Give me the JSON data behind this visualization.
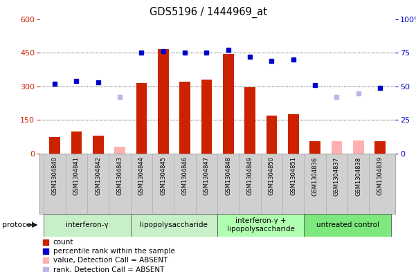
{
  "title": "GDS5196 / 1444969_at",
  "samples": [
    "GSM1304840",
    "GSM1304841",
    "GSM1304842",
    "GSM1304843",
    "GSM1304844",
    "GSM1304845",
    "GSM1304846",
    "GSM1304847",
    "GSM1304848",
    "GSM1304849",
    "GSM1304850",
    "GSM1304851",
    "GSM1304836",
    "GSM1304837",
    "GSM1304838",
    "GSM1304839"
  ],
  "count_values": [
    75,
    100,
    80,
    null,
    315,
    465,
    320,
    330,
    445,
    295,
    170,
    175,
    55,
    null,
    null,
    55
  ],
  "count_absent": [
    null,
    null,
    null,
    30,
    null,
    null,
    null,
    null,
    null,
    null,
    null,
    null,
    null,
    55,
    60,
    null
  ],
  "rank_values_pct": [
    52,
    54,
    53,
    null,
    75,
    76,
    75,
    75,
    77,
    72,
    69,
    70,
    51,
    null,
    null,
    49
  ],
  "rank_absent_pct": [
    null,
    null,
    null,
    42,
    null,
    null,
    null,
    null,
    null,
    null,
    null,
    null,
    null,
    42,
    45,
    null
  ],
  "groups": [
    {
      "label": "interferon-γ",
      "start": 0,
      "end": 4,
      "color": "#c8f0c8"
    },
    {
      "label": "lipopolysaccharide",
      "start": 4,
      "end": 8,
      "color": "#c8f0c8"
    },
    {
      "label": "interferon-γ +\nlipopolysaccharide",
      "start": 8,
      "end": 12,
      "color": "#b0ffb0"
    },
    {
      "label": "untreated control",
      "start": 12,
      "end": 16,
      "color": "#7de87d"
    }
  ],
  "ylim_left": [
    0,
    600
  ],
  "ylim_right": [
    0,
    100
  ],
  "yticks_left": [
    0,
    150,
    300,
    450,
    600
  ],
  "yticks_right": [
    0,
    25,
    50,
    75,
    100
  ],
  "bar_color": "#cc2200",
  "bar_absent_color": "#ffb0b0",
  "dot_color": "#0000cc",
  "dot_absent_color": "#b8b8e8",
  "plot_bg": "#ffffff",
  "tick_area_bg": "#d0d0d0",
  "bar_width": 0.5,
  "legend_items": [
    {
      "color": "#cc2200",
      "label": "count"
    },
    {
      "color": "#0000cc",
      "label": "percentile rank within the sample"
    },
    {
      "color": "#ffb0b0",
      "label": "value, Detection Call = ABSENT"
    },
    {
      "color": "#b8b8e8",
      "label": "rank, Detection Call = ABSENT"
    }
  ]
}
